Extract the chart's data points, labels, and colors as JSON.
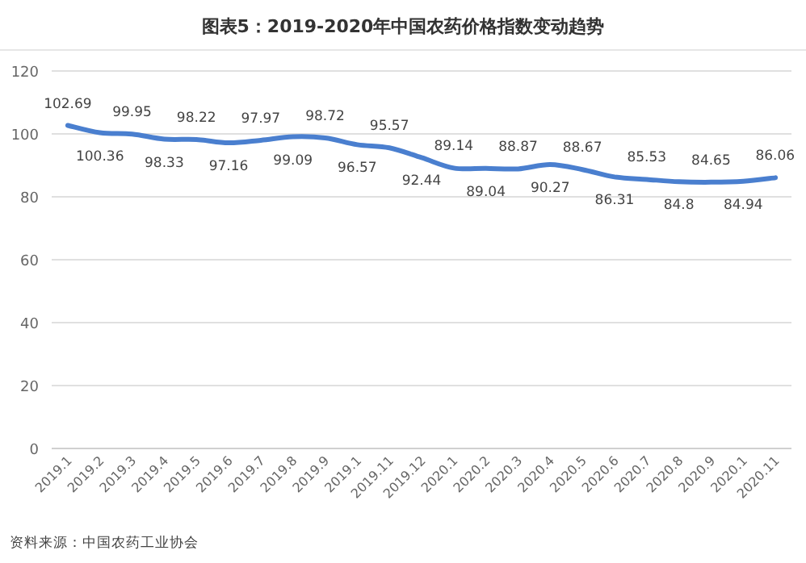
{
  "chart_data": {
    "type": "line",
    "title": "图表5：2019-2020年中国农药价格指数变动趋势",
    "categories": [
      "2019.1",
      "2019.2",
      "2019.3",
      "2019.4",
      "2019.5",
      "2019.6",
      "2019.7",
      "2019.8",
      "2019.9",
      "2019.1",
      "2019.11",
      "2019.12",
      "2020.1",
      "2020.2",
      "2020.3",
      "2020.4",
      "2020.5",
      "2020.6",
      "2020.7",
      "2020.8",
      "2020.9",
      "2020.1",
      "2020.11"
    ],
    "values": [
      102.69,
      100.36,
      99.95,
      98.33,
      98.22,
      97.16,
      97.97,
      99.09,
      98.72,
      96.57,
      95.57,
      92.44,
      89.14,
      89.04,
      88.87,
      90.27,
      88.67,
      86.31,
      85.53,
      84.8,
      84.65,
      84.94,
      86.06
    ],
    "color": "#4a7fcf",
    "ylim": [
      0,
      120
    ],
    "yticks": [
      0,
      20,
      40,
      60,
      80,
      100,
      120
    ],
    "grid": "y",
    "data_labels": true,
    "marker": "none",
    "line_style": "solid",
    "annotations": [
      "资料来源：中国农药工业协会"
    ]
  }
}
